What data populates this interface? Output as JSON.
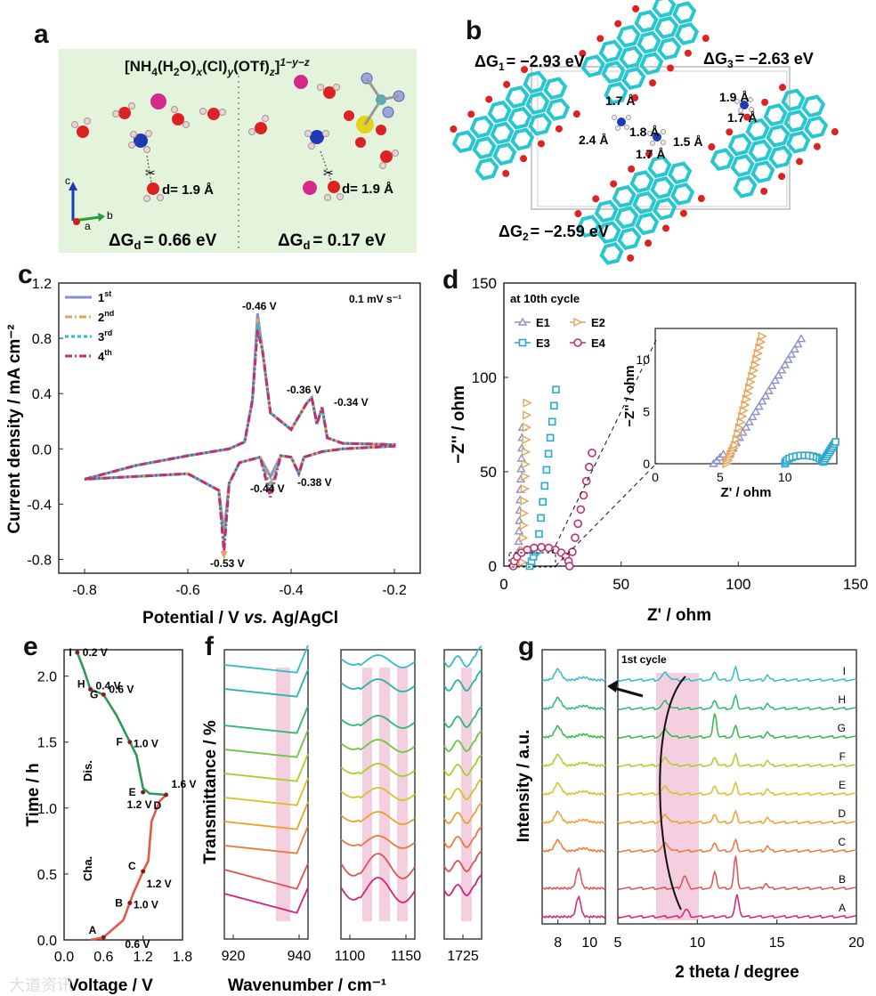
{
  "panels": {
    "a": {
      "label": "a",
      "formula_main": "[NH",
      "formula_parts": [
        "4",
        "(H",
        "2",
        "O)",
        "x",
        "(Cl)",
        "y",
        "(OTf)",
        "z",
        "]",
        "1−y−z"
      ],
      "d_left": "d= 1.9 Å",
      "d_right": "d= 1.9 Å",
      "dg_left_sym": "ΔG",
      "dg_sub": "d",
      "dg_left_val": "= 0.66 eV",
      "dg_right_val": "= 0.17 eV",
      "axis_c": "c",
      "axis_b": "b",
      "axis_a": "a"
    },
    "b": {
      "label": "b",
      "dg1": "ΔG",
      "dg1_sub": "1",
      "dg1_val": "= −2.93 eV",
      "dg2_sub": "2",
      "dg2_val": "= −2.59 eV",
      "dg3_sub": "3",
      "dg3_val": "= −2.63 eV",
      "bonds": [
        "1.7 Å",
        "2.4 Å",
        "1.8 Å",
        "1.7 Å",
        "1.5 Å",
        "1.9 Å",
        "1.7 Å"
      ]
    },
    "c": {
      "label": "c"
    },
    "d": {
      "label": "d"
    },
    "e": {
      "label": "e"
    },
    "f": {
      "label": "f"
    },
    "g": {
      "label": "g"
    }
  },
  "chart_data": [
    {
      "id": "c",
      "type": "line",
      "xlabel": "Potential / V vs. Ag/AgCl",
      "ylabel": "Current density / mA cm⁻²",
      "xlim": [
        -0.85,
        -0.15
      ],
      "ylim": [
        -0.9,
        1.2
      ],
      "xticks": [
        "-0.8",
        "-0.6",
        "-0.4",
        "-0.2"
      ],
      "yticks": [
        "-0.8",
        "-0.4",
        "0.0",
        "0.4",
        "0.8",
        "1.2"
      ],
      "rate": "0.1 mV s⁻¹",
      "legend": [
        "1st",
        "2nd",
        "3rd",
        "4th"
      ],
      "legend_sup": [
        "st",
        "nd",
        "rd",
        "th"
      ],
      "legend_base": [
        "1",
        "2",
        "3",
        "4"
      ],
      "colors": [
        "#8a8fc9",
        "#e4a35a",
        "#2bb9d9",
        "#c1306b"
      ],
      "annotations": [
        "-0.46 V",
        "-0.36 V",
        "-0.34 V",
        "-0.44 V",
        "-0.38 V",
        "-0.53 V"
      ]
    },
    {
      "id": "d",
      "type": "scatter",
      "xlabel": "Z' / ohm",
      "ylabel": "−Z'' / ohm",
      "xlim": [
        0,
        150
      ],
      "ylim": [
        0,
        150
      ],
      "xticks": [
        "0",
        "50",
        "100",
        "150"
      ],
      "yticks": [
        "0",
        "50",
        "100",
        "150"
      ],
      "title": "at 10th cycle",
      "series": [
        "E1",
        "E2",
        "E3",
        "E4"
      ],
      "colors": [
        "#8a8fc9",
        "#e4a35a",
        "#2ba8cf",
        "#c1306b"
      ],
      "inset": {
        "xlabel": "Z' / ohm",
        "ylabel": "−Z'' / ohm",
        "xticks": [
          "0",
          "5",
          "10"
        ],
        "yticks": [
          "0",
          "5",
          "10"
        ],
        "xlim": [
          0,
          14
        ],
        "ylim": [
          0,
          13
        ]
      }
    },
    {
      "id": "e",
      "type": "line",
      "xlabel": "Voltage / V",
      "ylabel": "Time / h",
      "xlim": [
        0,
        1.8
      ],
      "ylim": [
        0,
        2.2
      ],
      "xticks": [
        "0.0",
        "0.6",
        "1.2",
        "1.8"
      ],
      "yticks": [
        "0.0",
        "0.5",
        "1.0",
        "1.5",
        "2.0"
      ],
      "points": [
        {
          "id": "A",
          "v": "0.6 V"
        },
        {
          "id": "B",
          "v": "1.0 V"
        },
        {
          "id": "C",
          "v": "1.2 V"
        },
        {
          "id": "D",
          "v": "1.6 V"
        },
        {
          "id": "E",
          "v": "1.2 V"
        },
        {
          "id": "F",
          "v": "1.0 V"
        },
        {
          "id": "G",
          "v": "0.6 V"
        },
        {
          "id": "H",
          "v": "0.4 V"
        },
        {
          "id": "I",
          "v": "0.2 V"
        }
      ],
      "dis_label": "Dis.",
      "cha_label": "Cha."
    },
    {
      "id": "f",
      "type": "line",
      "xlabel": "Wavenumber / cm⁻¹",
      "ylabel": "Transmittance / %",
      "windows": [
        {
          "ticks": [
            "920",
            "940"
          ]
        },
        {
          "ticks": [
            "1100",
            "1150"
          ]
        },
        {
          "ticks": [
            "1725"
          ]
        }
      ]
    },
    {
      "id": "g",
      "type": "line",
      "xlabel": "2 theta / degree",
      "ylabel": "Intensity / a.u.",
      "left_ticks": [
        "8",
        "10"
      ],
      "right_ticks": [
        "5",
        "10",
        "15",
        "20"
      ],
      "cycle_label": "1st cycle",
      "curves": [
        "A",
        "B",
        "C",
        "D",
        "E",
        "F",
        "G",
        "H",
        "I"
      ]
    }
  ],
  "watermark": "大道资讯"
}
